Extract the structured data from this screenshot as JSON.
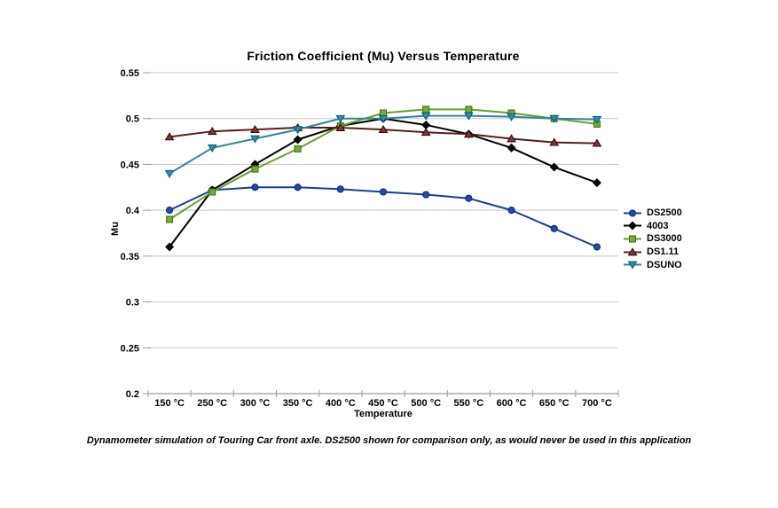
{
  "page": {
    "background": "#FFFFFF",
    "caption": "Dynamometer simulation of Touring Car front axle. DS2500 shown for comparison only, as would never be used in this application"
  },
  "chart_data": {
    "type": "line",
    "title": "Friction Coefficient (Mu) Versus Temperature",
    "xlabel": "Temperature",
    "ylabel": "Mu",
    "categories": [
      "150 °C",
      "250 °C",
      "300 °C",
      "350 °C",
      "400 °C",
      "450 °C",
      "500 °C",
      "550 °C",
      "600 °C",
      "650 °C",
      "700 °C"
    ],
    "y_tick_labels": [
      "0.2",
      "0.25",
      "0.3",
      "0.35",
      "0.4",
      "0.45",
      "0.5",
      "0.55"
    ],
    "ylim": [
      0.2,
      0.55
    ],
    "grid": true,
    "legend_position": "right",
    "gridline_color": "#C8C8C8",
    "axis_color": "#9C9C9C",
    "series": [
      {
        "name": "DS2500",
        "marker": "circle",
        "line_color": "#1B3F94",
        "marker_fill": "#1F4AA6",
        "marker_edge": "#0D2B66",
        "values": [
          0.4,
          0.422,
          0.425,
          0.425,
          0.423,
          0.42,
          0.417,
          0.413,
          0.4,
          0.38,
          0.36
        ]
      },
      {
        "name": "4003",
        "marker": "diamond",
        "line_color": "#000000",
        "marker_fill": "#0A0A0A",
        "marker_edge": "#000000",
        "values": [
          0.36,
          0.422,
          0.45,
          0.477,
          0.492,
          0.5,
          0.493,
          0.483,
          0.468,
          0.447,
          0.43
        ]
      },
      {
        "name": "DS3000",
        "marker": "square",
        "line_color": "#69A02C",
        "marker_fill": "#76AC2F",
        "marker_edge": "#3E6B1A",
        "values": [
          0.39,
          0.42,
          0.445,
          0.467,
          0.492,
          0.506,
          0.51,
          0.51,
          0.506,
          0.5,
          0.494
        ]
      },
      {
        "name": "DS1.11",
        "marker": "triangle-up",
        "line_color": "#54201E",
        "marker_fill": "#8C3431",
        "marker_edge": "#200A09",
        "values": [
          0.48,
          0.486,
          0.488,
          0.49,
          0.49,
          0.488,
          0.485,
          0.483,
          0.478,
          0.474,
          0.473
        ]
      },
      {
        "name": "DSUNO",
        "marker": "triangle-down",
        "line_color": "#2E86A3",
        "marker_fill": "#2E8CAE",
        "marker_edge": "#155770",
        "values": [
          0.44,
          0.468,
          0.478,
          0.488,
          0.5,
          0.5,
          0.503,
          0.503,
          0.502,
          0.5,
          0.499
        ]
      }
    ]
  }
}
